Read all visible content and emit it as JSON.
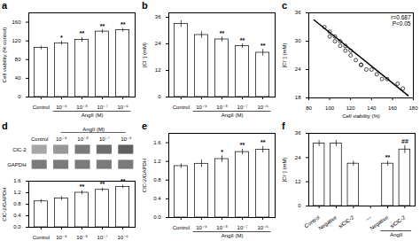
{
  "chart_data": [
    {
      "type": "bar",
      "title": "a",
      "categories": [
        "Control",
        "10⁻⁹",
        "10⁻⁸",
        "10⁻⁷",
        "10⁻⁶"
      ],
      "values": [
        105,
        115,
        122,
        140,
        143
      ],
      "errors": [
        4,
        4,
        5,
        4,
        4
      ],
      "significance": [
        null,
        "*",
        "**",
        "**",
        "**"
      ],
      "ylabel": "Cell viability (% control)",
      "ylim": [
        0,
        180
      ],
      "yticks": [
        0,
        40,
        80,
        120,
        160
      ],
      "color": "#ffffff",
      "bracket": {
        "text": "AngII (M)",
        "first": 1,
        "last": 4
      }
    },
    {
      "type": "bar",
      "title": "b",
      "categories": [
        "Control",
        "10⁻⁹",
        "10⁻⁸",
        "10⁻⁷",
        "10⁻⁶"
      ],
      "values": [
        33,
        28,
        26,
        23,
        20
      ],
      "errors": [
        1.5,
        1.5,
        1.0,
        1.0,
        1.5
      ],
      "significance": [
        null,
        null,
        "**",
        "**",
        "**"
      ],
      "ylabel": "[Cl⁻] (mM)",
      "ylim": [
        0,
        38
      ],
      "yticks": [
        0,
        12,
        24,
        36
      ],
      "color": "#ffffff",
      "bracket": {
        "text": "AngII (M)",
        "first": 1,
        "last": 4
      }
    },
    {
      "type": "scatter",
      "title": "c",
      "x": [
        95,
        100,
        100,
        105,
        105,
        110,
        110,
        115,
        115,
        120,
        120,
        125,
        130,
        130,
        135,
        140,
        145,
        150,
        155,
        165,
        170
      ],
      "values": [
        33,
        32,
        31,
        31,
        30,
        30,
        29,
        29,
        28,
        28,
        27,
        26,
        25,
        25,
        24,
        24,
        23,
        22,
        22,
        21,
        20
      ],
      "line": {
        "x": [
          85,
          175
        ],
        "values": [
          34.5,
          18.5
        ]
      },
      "xlabel": "Cell viability (%)",
      "ylabel": "[Cl⁻] (mM)",
      "xlim": [
        80,
        180
      ],
      "ylim": [
        18,
        36
      ],
      "xticks": [
        80,
        100,
        120,
        140,
        160,
        180
      ],
      "yticks": [
        18,
        24,
        30,
        36
      ],
      "annotation": "r=0.687\nP<0.05"
    },
    {
      "type": "blot",
      "title": "d",
      "lanes": [
        "Control",
        "10⁻⁹",
        "10⁻⁸",
        "10⁻⁷",
        "10⁻⁶"
      ],
      "bands": [
        {
          "name": "ClC-2",
          "values": [
            0.45,
            0.5,
            0.6,
            0.65,
            0.7
          ]
        },
        {
          "name": "GAPDH",
          "values": [
            0.6,
            0.6,
            0.6,
            0.6,
            0.6
          ]
        }
      ],
      "bracket": {
        "text": "AngII (M)",
        "first": 1,
        "last": 4
      }
    },
    {
      "type": "bar",
      "categories": [
        "Control",
        "10⁻⁹",
        "10⁻⁸",
        "10⁻⁷",
        "10⁻⁶"
      ],
      "values": [
        0.9,
        1.0,
        1.2,
        1.3,
        1.4
      ],
      "errors": [
        0.06,
        0.07,
        0.07,
        0.06,
        0.06
      ],
      "significance": [
        null,
        null,
        "**",
        "**",
        "**"
      ],
      "ylabel": "ClC-2/GAPDH",
      "ylim": [
        0.0,
        1.6
      ],
      "yticks": [
        {
          "value": 0,
          "label": "0.0"
        },
        0.4,
        0.8,
        1.2,
        1.6
      ],
      "color": "#ffffff"
    },
    {
      "type": "bar",
      "title": "e",
      "categories": [
        "Control",
        "10⁻⁹",
        "10⁻⁸",
        "10⁻⁷",
        "10⁻⁶"
      ],
      "values": [
        1.1,
        1.15,
        1.25,
        1.4,
        1.45
      ],
      "errors": [
        0.05,
        0.08,
        0.07,
        0.06,
        0.07
      ],
      "significance": [
        null,
        null,
        "*",
        "**",
        "**"
      ],
      "ylabel": "ClC-2/GAPDH",
      "ylim": [
        0.0,
        1.8
      ],
      "yticks": [
        {
          "value": 0,
          "label": "0.0"
        },
        0.4,
        0.8,
        1.2,
        1.6
      ],
      "color": "#ffffff",
      "bracket": {
        "text": "AngII (M)",
        "first": 1,
        "last": 4
      }
    },
    {
      "type": "bar",
      "title": "f",
      "categories": [
        "Control",
        "Negative",
        "siClC-2",
        "---",
        "Negative",
        "siClC-2"
      ],
      "values": [
        31,
        31,
        21,
        null,
        21,
        28
      ],
      "errors": [
        1.5,
        1.5,
        1.2,
        null,
        1.2,
        2.0
      ],
      "significance": [
        null,
        null,
        null,
        null,
        "**",
        "##"
      ],
      "ylabel": "[Cl⁻] (mM)",
      "ylim": [
        0,
        36
      ],
      "yticks": [
        0,
        12,
        24,
        36
      ],
      "color": "#ffffff",
      "bracket": {
        "text": "AngII",
        "first": 4,
        "last": 5
      }
    }
  ]
}
